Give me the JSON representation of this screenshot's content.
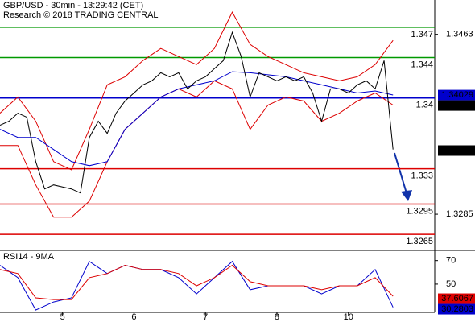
{
  "chart_data": [
    {
      "type": "line",
      "title": "GBP/USD - 30min - 13:29:42 (CET)",
      "subtitle": "Research © 2018 TRADING CENTRAL",
      "xlim": [
        0,
        146
      ],
      "ylim": [
        1.325,
        1.3497
      ],
      "yticks": [
        1.3463,
        1.3285
      ],
      "levels": [
        {
          "value": 1.347,
          "color": "#009900"
        },
        {
          "value": 1.344,
          "color": "#009900"
        },
        {
          "value": 1.34,
          "color": "#0000cc"
        },
        {
          "value": 1.333,
          "color": "#dd0000"
        },
        {
          "value": 1.3295,
          "color": "#dd0000"
        },
        {
          "value": 1.3265,
          "color": "#dd0000"
        }
      ],
      "series": [
        {
          "color": "#dd0000",
          "x": [
            0,
            6,
            12,
            18,
            24,
            30,
            36,
            42,
            48,
            54,
            60,
            66,
            72,
            78,
            84,
            90,
            96,
            102,
            108,
            114,
            120,
            126,
            132
          ],
          "values": [
            1.3385,
            1.3401,
            1.3377,
            1.3337,
            1.3329,
            1.3369,
            1.3413,
            1.3421,
            1.3437,
            1.3449,
            1.3441,
            1.3433,
            1.3449,
            1.3485,
            1.3453,
            1.3441,
            1.3433,
            1.3425,
            1.3421,
            1.3417,
            1.3421,
            1.3433,
            1.3457
          ]
        },
        {
          "color": "#dd0000",
          "x": [
            0,
            6,
            12,
            18,
            24,
            30,
            36,
            42,
            48,
            54,
            60,
            66,
            72,
            78,
            84,
            90,
            96,
            102,
            108,
            114,
            120,
            126,
            132
          ],
          "values": [
            1.3353,
            1.3353,
            1.3314,
            1.3282,
            1.3282,
            1.3298,
            1.3337,
            1.3369,
            1.3385,
            1.3401,
            1.3409,
            1.3401,
            1.3417,
            1.3409,
            1.3369,
            1.3393,
            1.3401,
            1.3397,
            1.3377,
            1.3385,
            1.3397,
            1.3405,
            1.3393
          ]
        },
        {
          "color": "#0000cc",
          "x": [
            0,
            6,
            12,
            18,
            24,
            30,
            36,
            42,
            48,
            54,
            60,
            66,
            72,
            78,
            84,
            90,
            96,
            102,
            108,
            114,
            120,
            126,
            132
          ],
          "values": [
            1.3369,
            1.3361,
            1.3361,
            1.3349,
            1.3337,
            1.3333,
            1.3337,
            1.3369,
            1.3385,
            1.3401,
            1.3409,
            1.3413,
            1.3417,
            1.3426,
            1.3425,
            1.3423,
            1.3421,
            1.3417,
            1.3413,
            1.3409,
            1.3405,
            1.3407,
            1.3403
          ]
        },
        {
          "color": "#000000",
          "x": [
            0,
            3,
            6,
            9,
            12,
            15,
            18,
            21,
            24,
            27,
            30,
            33,
            36,
            39,
            42,
            45,
            48,
            51,
            54,
            57,
            60,
            63,
            66,
            69,
            72,
            75,
            78,
            81,
            84,
            87,
            90,
            93,
            96,
            99,
            102,
            105,
            108,
            111,
            114,
            117,
            120,
            123,
            126,
            129,
            132
          ],
          "values": [
            1.3373,
            1.3377,
            1.3385,
            1.3381,
            1.3337,
            1.331,
            1.3314,
            1.3312,
            1.331,
            1.3306,
            1.3361,
            1.3377,
            1.3365,
            1.3385,
            1.3397,
            1.3405,
            1.3413,
            1.3417,
            1.3425,
            1.3421,
            1.3425,
            1.3409,
            1.3417,
            1.3421,
            1.3429,
            1.3437,
            1.3465,
            1.3441,
            1.3401,
            1.3425,
            1.3421,
            1.3417,
            1.3421,
            1.3417,
            1.3421,
            1.3405,
            1.3377,
            1.3409,
            1.3409,
            1.3405,
            1.3413,
            1.3417,
            1.3409,
            1.3437,
            1.3349
          ]
        }
      ],
      "price_labels": [
        {
          "value": 1.34029,
          "color": "#0000cc"
        },
        {
          "value": 1.33963,
          "color": "#000000"
        },
        {
          "value": 1.3348,
          "color": "#000000"
        }
      ]
    },
    {
      "type": "line",
      "title": "RSI14 - 9MA",
      "xlim": [
        0,
        146
      ],
      "xticks": [
        {
          "value": 21,
          "label": "5"
        },
        {
          "value": 45,
          "label": "6"
        },
        {
          "value": 69,
          "label": "7"
        },
        {
          "value": 93,
          "label": "8"
        },
        {
          "value": 117,
          "label": "10"
        }
      ],
      "ylim": [
        26,
        78
      ],
      "yticks": [
        70,
        50
      ],
      "series": [
        {
          "color": "#0000cc",
          "x": [
            0,
            6,
            12,
            18,
            24,
            30,
            36,
            42,
            48,
            54,
            60,
            66,
            72,
            78,
            84,
            90,
            96,
            102,
            108,
            114,
            120,
            126,
            132
          ],
          "values": [
            66,
            55.5,
            28,
            34.8,
            38.3,
            69.3,
            59,
            66,
            62.4,
            62.4,
            55.5,
            41.7,
            55.5,
            69.3,
            45.2,
            48.6,
            48.6,
            48.6,
            41.7,
            48.6,
            48.6,
            62.4,
            30.3
          ]
        },
        {
          "color": "#dd0000",
          "x": [
            0,
            6,
            12,
            18,
            24,
            30,
            36,
            42,
            48,
            54,
            60,
            66,
            72,
            78,
            84,
            90,
            96,
            102,
            108,
            114,
            120,
            126,
            132
          ],
          "values": [
            62.4,
            59,
            38.3,
            36.9,
            36.9,
            55.5,
            59,
            66,
            62.4,
            62.4,
            59,
            48.6,
            55.5,
            66,
            52.1,
            48.6,
            48.6,
            48.6,
            45.2,
            48.6,
            48.6,
            55.5,
            39.7
          ]
        }
      ],
      "price_labels": [
        {
          "value": 37.6067,
          "color": "#dd0000"
        },
        {
          "value": 30.2803,
          "color": "#0000cc"
        }
      ]
    }
  ]
}
